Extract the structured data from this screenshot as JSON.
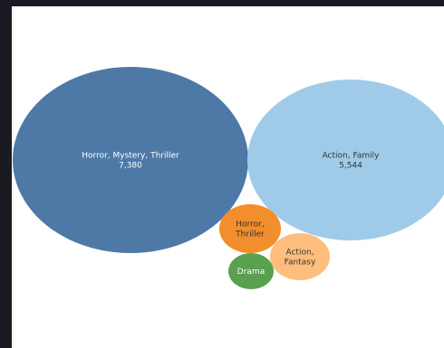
{
  "chart_data": {
    "type": "bubble",
    "title": "",
    "colors": {
      "Horror, Mystery, Thriller": "#4e79a7",
      "Action, Family": "#a0cbe8",
      "Horror, Thriller": "#f28e2b",
      "Action, Fantasy": "#ffbe7d",
      "Drama": "#59a14f"
    },
    "bubbles": [
      {
        "label_lines": [
          "Horror, Mystery, Thriller"
        ],
        "value": 7380,
        "value_label": "7,380",
        "color": "#4e79a7",
        "text_color": "#ffffff"
      },
      {
        "label_lines": [
          "Action, Family"
        ],
        "value": 5544,
        "value_label": "5,544",
        "color": "#a0cbe8",
        "text_color": "#333333"
      },
      {
        "label_lines": [
          "Horror,",
          "Thriller"
        ],
        "value": null,
        "value_label": "",
        "color": "#f28e2b",
        "text_color": "#333333"
      },
      {
        "label_lines": [
          "Action,",
          "Fantasy"
        ],
        "value": null,
        "value_label": "",
        "color": "#ffbe7d",
        "text_color": "#333333"
      },
      {
        "label_lines": [
          "Drama"
        ],
        "value": null,
        "value_label": "",
        "color": "#59a14f",
        "text_color": "#ffffff"
      }
    ]
  }
}
